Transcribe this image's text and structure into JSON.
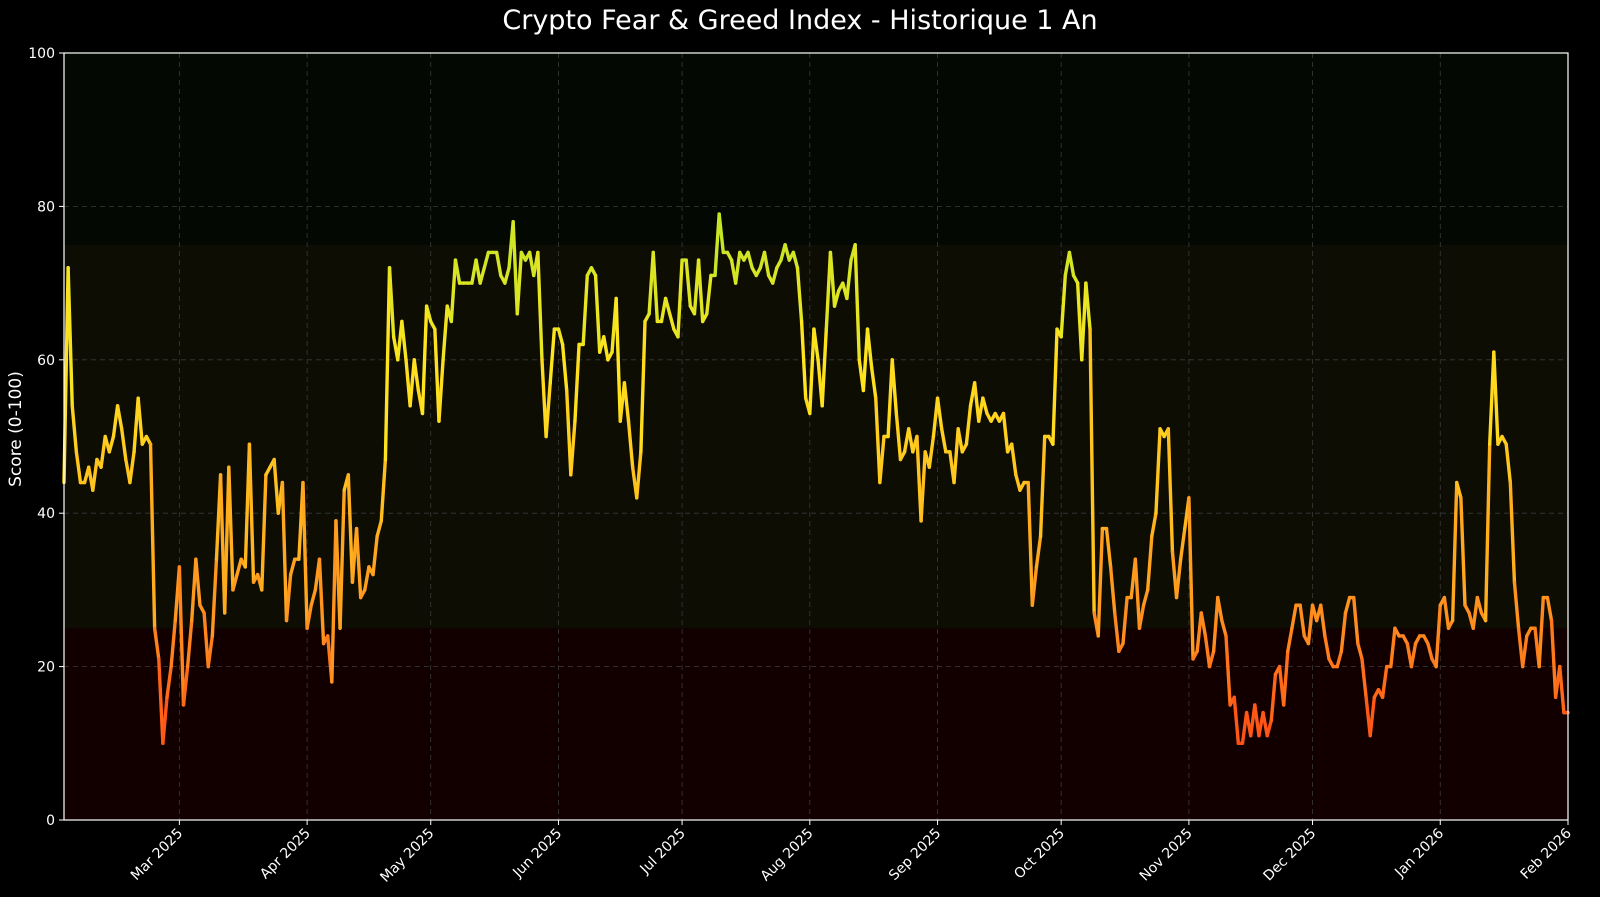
{
  "chart_data": {
    "type": "line",
    "title": "Crypto Fear & Greed Index - Historique 1 An",
    "xlabel": "",
    "ylabel": "Score (0-100)",
    "ylim": [
      0,
      100
    ],
    "xlim": [
      "2025-02-01",
      "2026-02-01"
    ],
    "yticks": [
      0,
      20,
      40,
      60,
      80,
      100
    ],
    "xticks": [
      {
        "date": "2025-03-01",
        "label": "Mar 2025"
      },
      {
        "date": "2025-04-01",
        "label": "Apr 2025"
      },
      {
        "date": "2025-05-01",
        "label": "May 2025"
      },
      {
        "date": "2025-06-01",
        "label": "Jun 2025"
      },
      {
        "date": "2025-07-01",
        "label": "Jul 2025"
      },
      {
        "date": "2025-08-01",
        "label": "Aug 2025"
      },
      {
        "date": "2025-09-01",
        "label": "Sep 2025"
      },
      {
        "date": "2025-10-01",
        "label": "Oct 2025"
      },
      {
        "date": "2025-11-01",
        "label": "Nov 2025"
      },
      {
        "date": "2025-12-01",
        "label": "Dec 2025"
      },
      {
        "date": "2026-01-01",
        "label": "Jan 2026"
      },
      {
        "date": "2026-02-01",
        "label": "Feb 2026"
      }
    ],
    "grid": true,
    "zones": [
      {
        "from": 0,
        "to": 25,
        "color": "#120000"
      },
      {
        "from": 25,
        "to": 75,
        "color": "#0d0d04"
      },
      {
        "from": 75,
        "to": 100,
        "color": "#030803"
      }
    ],
    "color_scale": [
      {
        "value": 10,
        "color": "#ff4a14"
      },
      {
        "value": 25,
        "color": "#ff8a1e"
      },
      {
        "value": 45,
        "color": "#ffc41e"
      },
      {
        "value": 60,
        "color": "#ffe41e"
      },
      {
        "value": 80,
        "color": "#b8e628"
      }
    ],
    "series": [
      {
        "x": [
          "2025-02-01",
          "2025-02-02",
          "2025-02-03",
          "2025-02-04",
          "2025-02-05",
          "2025-02-06",
          "2025-02-07",
          "2025-02-08",
          "2025-02-09",
          "2025-02-10",
          "2025-02-11",
          "2025-02-12",
          "2025-02-13",
          "2025-02-14",
          "2025-02-15",
          "2025-02-16",
          "2025-02-17",
          "2025-02-18",
          "2025-02-19",
          "2025-02-20",
          "2025-02-21",
          "2025-02-22",
          "2025-02-23",
          "2025-02-24",
          "2025-02-25",
          "2025-02-26",
          "2025-02-27",
          "2025-02-28",
          "2025-03-01",
          "2025-03-02",
          "2025-03-03",
          "2025-03-04",
          "2025-03-05",
          "2025-03-06",
          "2025-03-07",
          "2025-03-08",
          "2025-03-09",
          "2025-03-10",
          "2025-03-11",
          "2025-03-12",
          "2025-03-13",
          "2025-03-14",
          "2025-03-15",
          "2025-03-16",
          "2025-03-17",
          "2025-03-18",
          "2025-03-19",
          "2025-03-20",
          "2025-03-21",
          "2025-03-22",
          "2025-03-23",
          "2025-03-24",
          "2025-03-25",
          "2025-03-26",
          "2025-03-27",
          "2025-03-28",
          "2025-03-29",
          "2025-03-30",
          "2025-03-31",
          "2025-04-01",
          "2025-04-02",
          "2025-04-03",
          "2025-04-04",
          "2025-04-05",
          "2025-04-06",
          "2025-04-07",
          "2025-04-08",
          "2025-04-09",
          "2025-04-10",
          "2025-04-11",
          "2025-04-12",
          "2025-04-13",
          "2025-04-14",
          "2025-04-15",
          "2025-04-16",
          "2025-04-17",
          "2025-04-18",
          "2025-04-19",
          "2025-04-20",
          "2025-04-21",
          "2025-04-22",
          "2025-04-23",
          "2025-04-24",
          "2025-04-25",
          "2025-04-26",
          "2025-04-27",
          "2025-04-28",
          "2025-04-29",
          "2025-04-30",
          "2025-05-01",
          "2025-05-02",
          "2025-05-03",
          "2025-05-04",
          "2025-05-05",
          "2025-05-06",
          "2025-05-07",
          "2025-05-08",
          "2025-05-09",
          "2025-05-10",
          "2025-05-11",
          "2025-05-12",
          "2025-05-13",
          "2025-05-14",
          "2025-05-15",
          "2025-05-16",
          "2025-05-17",
          "2025-05-18",
          "2025-05-19",
          "2025-05-20",
          "2025-05-21",
          "2025-05-22",
          "2025-05-23",
          "2025-05-24",
          "2025-05-25",
          "2025-05-26",
          "2025-05-27",
          "2025-05-28",
          "2025-05-29",
          "2025-05-30",
          "2025-05-31",
          "2025-06-01",
          "2025-06-02",
          "2025-06-03",
          "2025-06-04",
          "2025-06-05",
          "2025-06-06",
          "2025-06-07",
          "2025-06-08",
          "2025-06-09",
          "2025-06-10",
          "2025-06-11",
          "2025-06-12",
          "2025-06-13",
          "2025-06-14",
          "2025-06-15",
          "2025-06-16",
          "2025-06-17",
          "2025-06-18",
          "2025-06-19",
          "2025-06-20",
          "2025-06-21",
          "2025-06-22",
          "2025-06-23",
          "2025-06-24",
          "2025-06-25",
          "2025-06-26",
          "2025-06-27",
          "2025-06-28",
          "2025-06-29",
          "2025-06-30",
          "2025-07-01",
          "2025-07-02",
          "2025-07-03",
          "2025-07-04",
          "2025-07-05",
          "2025-07-06",
          "2025-07-07",
          "2025-07-08",
          "2025-07-09",
          "2025-07-10",
          "2025-07-11",
          "2025-07-12",
          "2025-07-13",
          "2025-07-14",
          "2025-07-15",
          "2025-07-16",
          "2025-07-17",
          "2025-07-18",
          "2025-07-19",
          "2025-07-20",
          "2025-07-21",
          "2025-07-22",
          "2025-07-23",
          "2025-07-24",
          "2025-07-25",
          "2025-07-26",
          "2025-07-27",
          "2025-07-28",
          "2025-07-29",
          "2025-07-30",
          "2025-07-31",
          "2025-08-01",
          "2025-08-02",
          "2025-08-03",
          "2025-08-04",
          "2025-08-05",
          "2025-08-06",
          "2025-08-07",
          "2025-08-08",
          "2025-08-09",
          "2025-08-10",
          "2025-08-11",
          "2025-08-12",
          "2025-08-13",
          "2025-08-14",
          "2025-08-15",
          "2025-08-16",
          "2025-08-17",
          "2025-08-18",
          "2025-08-19",
          "2025-08-20",
          "2025-08-21",
          "2025-08-22",
          "2025-08-23",
          "2025-08-24",
          "2025-08-25",
          "2025-08-26",
          "2025-08-27",
          "2025-08-28",
          "2025-08-29",
          "2025-08-30",
          "2025-08-31",
          "2025-09-01",
          "2025-09-02",
          "2025-09-03",
          "2025-09-04",
          "2025-09-05",
          "2025-09-06",
          "2025-09-07",
          "2025-09-08",
          "2025-09-09",
          "2025-09-10",
          "2025-09-11",
          "2025-09-12",
          "2025-09-13",
          "2025-09-14",
          "2025-09-15",
          "2025-09-16",
          "2025-09-17",
          "2025-09-18",
          "2025-09-19",
          "2025-09-20",
          "2025-09-21",
          "2025-09-22",
          "2025-09-23",
          "2025-09-24",
          "2025-09-25",
          "2025-09-26",
          "2025-09-27",
          "2025-09-28",
          "2025-09-29",
          "2025-09-30",
          "2025-10-01",
          "2025-10-02",
          "2025-10-03",
          "2025-10-04",
          "2025-10-05",
          "2025-10-06",
          "2025-10-07",
          "2025-10-08",
          "2025-10-09",
          "2025-10-10",
          "2025-10-11",
          "2025-10-12",
          "2025-10-13",
          "2025-10-14",
          "2025-10-15",
          "2025-10-16",
          "2025-10-17",
          "2025-10-18",
          "2025-10-19",
          "2025-10-20",
          "2025-10-21",
          "2025-10-22",
          "2025-10-23",
          "2025-10-24",
          "2025-10-25",
          "2025-10-26",
          "2025-10-27",
          "2025-10-28",
          "2025-10-29",
          "2025-10-30",
          "2025-10-31",
          "2025-11-01",
          "2025-11-02",
          "2025-11-03",
          "2025-11-04",
          "2025-11-05",
          "2025-11-06",
          "2025-11-07",
          "2025-11-08",
          "2025-11-09",
          "2025-11-10",
          "2025-11-11",
          "2025-11-12",
          "2025-11-13",
          "2025-11-14",
          "2025-11-15",
          "2025-11-16",
          "2025-11-17",
          "2025-11-18",
          "2025-11-19",
          "2025-11-20",
          "2025-11-21",
          "2025-11-22",
          "2025-11-23",
          "2025-11-24",
          "2025-11-25",
          "2025-11-26",
          "2025-11-27",
          "2025-11-28",
          "2025-11-29",
          "2025-11-30",
          "2025-12-01",
          "2025-12-02",
          "2025-12-03",
          "2025-12-04",
          "2025-12-05",
          "2025-12-06",
          "2025-12-07",
          "2025-12-08",
          "2025-12-09",
          "2025-12-10",
          "2025-12-11",
          "2025-12-12",
          "2025-12-13",
          "2025-12-14",
          "2025-12-15",
          "2025-12-16",
          "2025-12-17",
          "2025-12-18",
          "2025-12-19",
          "2025-12-20",
          "2025-12-21",
          "2025-12-22",
          "2025-12-23",
          "2025-12-24",
          "2025-12-25",
          "2025-12-26",
          "2025-12-27",
          "2025-12-28",
          "2025-12-29",
          "2025-12-30",
          "2025-12-31",
          "2026-01-01",
          "2026-01-02",
          "2026-01-03",
          "2026-01-04",
          "2026-01-05",
          "2026-01-06",
          "2026-01-07",
          "2026-01-08",
          "2026-01-09",
          "2026-01-10",
          "2026-01-11",
          "2026-01-12",
          "2026-01-13",
          "2026-01-14",
          "2026-01-15",
          "2026-01-16",
          "2026-01-17",
          "2026-01-18",
          "2026-01-19",
          "2026-01-20",
          "2026-01-21",
          "2026-01-22",
          "2026-01-23",
          "2026-01-24",
          "2026-01-25",
          "2026-01-26",
          "2026-01-27",
          "2026-01-28",
          "2026-01-29",
          "2026-01-30",
          "2026-01-31",
          "2026-02-01"
        ],
        "values": [
          44,
          72,
          54,
          48,
          44,
          44,
          46,
          43,
          47,
          46,
          50,
          48,
          50,
          54,
          51,
          47,
          44,
          48,
          55,
          49,
          50,
          49,
          25,
          21,
          10,
          16,
          20,
          26,
          33,
          15,
          20,
          26,
          34,
          28,
          27,
          20,
          24,
          34,
          45,
          27,
          46,
          30,
          32,
          34,
          33,
          49,
          31,
          32,
          30,
          45,
          46,
          47,
          40,
          44,
          26,
          32,
          34,
          34,
          44,
          25,
          28,
          30,
          34,
          23,
          24,
          18,
          39,
          25,
          43,
          45,
          31,
          38,
          29,
          30,
          33,
          32,
          37,
          39,
          47,
          72,
          63,
          60,
          65,
          60,
          54,
          60,
          56,
          53,
          67,
          65,
          64,
          52,
          60,
          67,
          65,
          73,
          70,
          70,
          70,
          70,
          73,
          70,
          72,
          74,
          74,
          74,
          71,
          70,
          72,
          78,
          66,
          74,
          73,
          74,
          71,
          74,
          60,
          50,
          57,
          64,
          64,
          62,
          56,
          45,
          52,
          62,
          62,
          71,
          72,
          71,
          61,
          63,
          60,
          61,
          68,
          52,
          57,
          52,
          46,
          42,
          48,
          65,
          66,
          74,
          65,
          65,
          68,
          66,
          64,
          63,
          73,
          73,
          67,
          66,
          73,
          65,
          66,
          71,
          71,
          79,
          74,
          74,
          73,
          70,
          74,
          73,
          74,
          72,
          71,
          72,
          74,
          71,
          70,
          72,
          73,
          75,
          73,
          74,
          72,
          65,
          55,
          53,
          64,
          60,
          54,
          64,
          74,
          67,
          69,
          70,
          68,
          73,
          75,
          60,
          56,
          64,
          59,
          55,
          44,
          50,
          50,
          60,
          53,
          47,
          48,
          51,
          48,
          50,
          39,
          48,
          46,
          50,
          55,
          51,
          48,
          48,
          44,
          51,
          48,
          49,
          54,
          57,
          52,
          55,
          53,
          52,
          53,
          52,
          53,
          48,
          49,
          45,
          43,
          44,
          44,
          28,
          33,
          37,
          50,
          50,
          49,
          64,
          63,
          71,
          74,
          71,
          70,
          60,
          70,
          64,
          27,
          24,
          38,
          38,
          33,
          27,
          22,
          23,
          29,
          29,
          34,
          25,
          28,
          30,
          37,
          40,
          51,
          50,
          51,
          35,
          29,
          34,
          38,
          42,
          21,
          22,
          27,
          24,
          20,
          22,
          29,
          26,
          24,
          15,
          16,
          10,
          10,
          14,
          11,
          15,
          11,
          14,
          11,
          13,
          19,
          20,
          15,
          22,
          25,
          28,
          28,
          24,
          23,
          28,
          26,
          28,
          24,
          21,
          20,
          20,
          22,
          27,
          29,
          29,
          23,
          21,
          16,
          11,
          16,
          17,
          16,
          20,
          20,
          25,
          24,
          24,
          23,
          20,
          23,
          24,
          24,
          23,
          21,
          20,
          28,
          29,
          25,
          26,
          44,
          42,
          28,
          27,
          25,
          29,
          27,
          26,
          49,
          61,
          49,
          50,
          49,
          44,
          31,
          25,
          20,
          24,
          25,
          25,
          20,
          29,
          29,
          26,
          16,
          20,
          14,
          14
        ]
      }
    ]
  }
}
